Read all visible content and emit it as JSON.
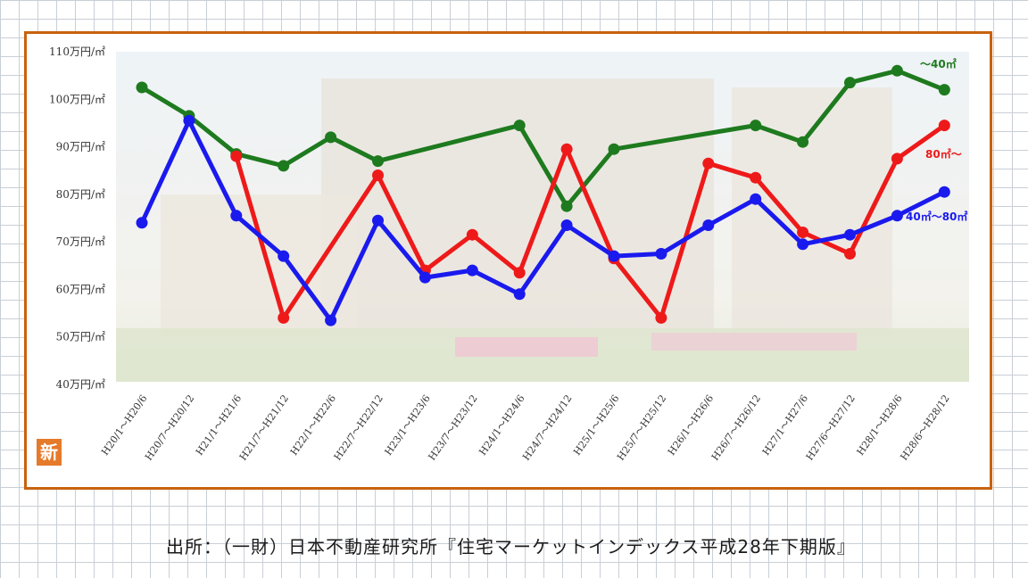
{
  "badge": "新",
  "source": "出所：（一財）日本不動産研究所『住宅マーケットインデックス平成28年下期版』",
  "chart_data": {
    "type": "line",
    "title": "",
    "xlabel": "",
    "ylabel": "",
    "ylim": [
      40,
      110
    ],
    "yticks": [
      {
        "v": 110,
        "label": "110万円/㎡"
      },
      {
        "v": 100,
        "label": "100万円/㎡"
      },
      {
        "v": 90,
        "label": "90万円/㎡"
      },
      {
        "v": 80,
        "label": "80万円/㎡"
      },
      {
        "v": 70,
        "label": "70万円/㎡"
      },
      {
        "v": 60,
        "label": "60万円/㎡"
      },
      {
        "v": 50,
        "label": "50万円/㎡"
      },
      {
        "v": 40,
        "label": "40万円/㎡"
      }
    ],
    "categories": [
      "H20/1～H20/6",
      "H20/7～H20/12",
      "H21/1～H21/6",
      "H21/7～H21/12",
      "H22/1～H22/6",
      "H22/7～H22/12",
      "H23/1～H23/6",
      "H23/7～H23/12",
      "H24/1～H24/6",
      "H24/7～H24/12",
      "H25/1～H25/6",
      "H25/7～H25/12",
      "H26/1～H26/6",
      "H26/7～H26/12",
      "H27/1～H27/6",
      "H27/6～H27/12",
      "H28/1～H28/6",
      "H28/6～H28/12"
    ],
    "series": [
      {
        "name": "～40㎡",
        "color": "#1e7a1e",
        "values": [
          102.5,
          96.5,
          88.5,
          86,
          92,
          87,
          null,
          null,
          94.5,
          77.5,
          89.5,
          null,
          null,
          94.5,
          91,
          103.5,
          106,
          102
        ]
      },
      {
        "name": "40㎡～80㎡",
        "color": "#1a1aee",
        "values": [
          74,
          95.5,
          75.5,
          67,
          53.5,
          74.5,
          62.5,
          64,
          59,
          73.5,
          67,
          67.5,
          73.5,
          79,
          69.5,
          71.5,
          75.5,
          80.5
        ]
      },
      {
        "name": "80㎡～",
        "color": "#ee1a1a",
        "values": [
          null,
          null,
          88,
          54,
          null,
          84,
          64,
          71.5,
          63.5,
          89.5,
          66.5,
          54,
          86.5,
          83.5,
          72,
          67.5,
          87.5,
          94.5
        ]
      }
    ]
  }
}
